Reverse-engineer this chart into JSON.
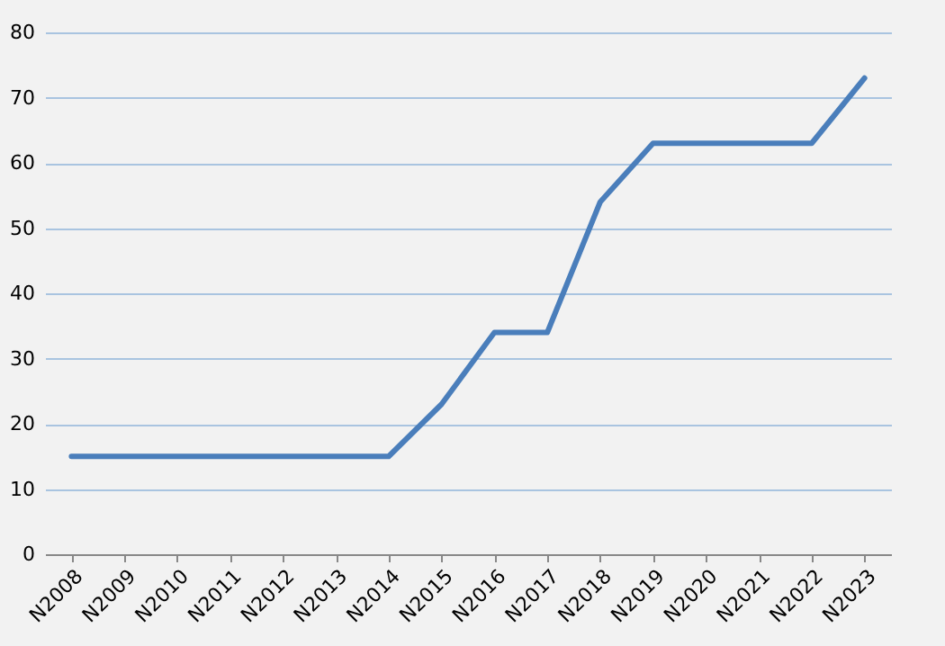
{
  "chart_data": {
    "type": "line",
    "categories": [
      "N2008",
      "N2009",
      "N2010",
      "N2011",
      "N2012",
      "N2013",
      "N2014",
      "N2015",
      "N2016",
      "N2017",
      "N2018",
      "N2019",
      "N2020",
      "N2021",
      "N2022",
      "N2023"
    ],
    "series": [
      {
        "color": "#4a7ebb",
        "values": [
          15,
          15,
          15,
          15,
          15,
          15,
          15,
          23,
          34,
          34,
          54,
          63,
          63,
          63,
          63,
          73
        ]
      }
    ],
    "ylim": [
      0,
      80
    ],
    "yticks": [
      0,
      10,
      20,
      30,
      40,
      50,
      60,
      70,
      80
    ],
    "grid": "y",
    "marker": "none",
    "line_style": "solid"
  }
}
